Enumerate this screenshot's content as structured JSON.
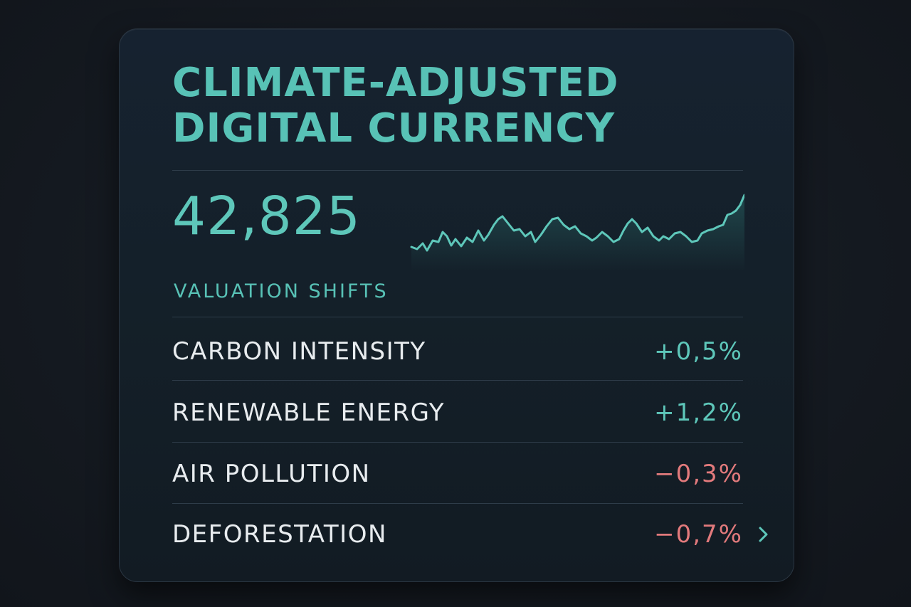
{
  "card": {
    "title_line1": "CLIMATE-ADJUSTED",
    "title_line2": "DIGITAL CURRENCY",
    "price": "42,825",
    "sparkline_icon": "sparkline-chart",
    "section_label": "VALUATION SHIFTS",
    "rows": [
      {
        "label": "CARBON INTENSITY",
        "value": "+0,5%",
        "trend": "positive"
      },
      {
        "label": "RENEWABLE ENERGY",
        "value": "+1,2%",
        "trend": "positive"
      },
      {
        "label": "AIR POLLUTION",
        "value": "−0,3%",
        "trend": "negative"
      },
      {
        "label": "DEFORESTATION",
        "value": "−0,7%",
        "trend": "negative"
      }
    ],
    "chevron_icon": "chevron-right-icon"
  },
  "colors": {
    "accent": "#58c2b6",
    "positive": "#5ec7ba",
    "negative": "#e27a7c",
    "background": "#151a21",
    "card": "#142029"
  }
}
